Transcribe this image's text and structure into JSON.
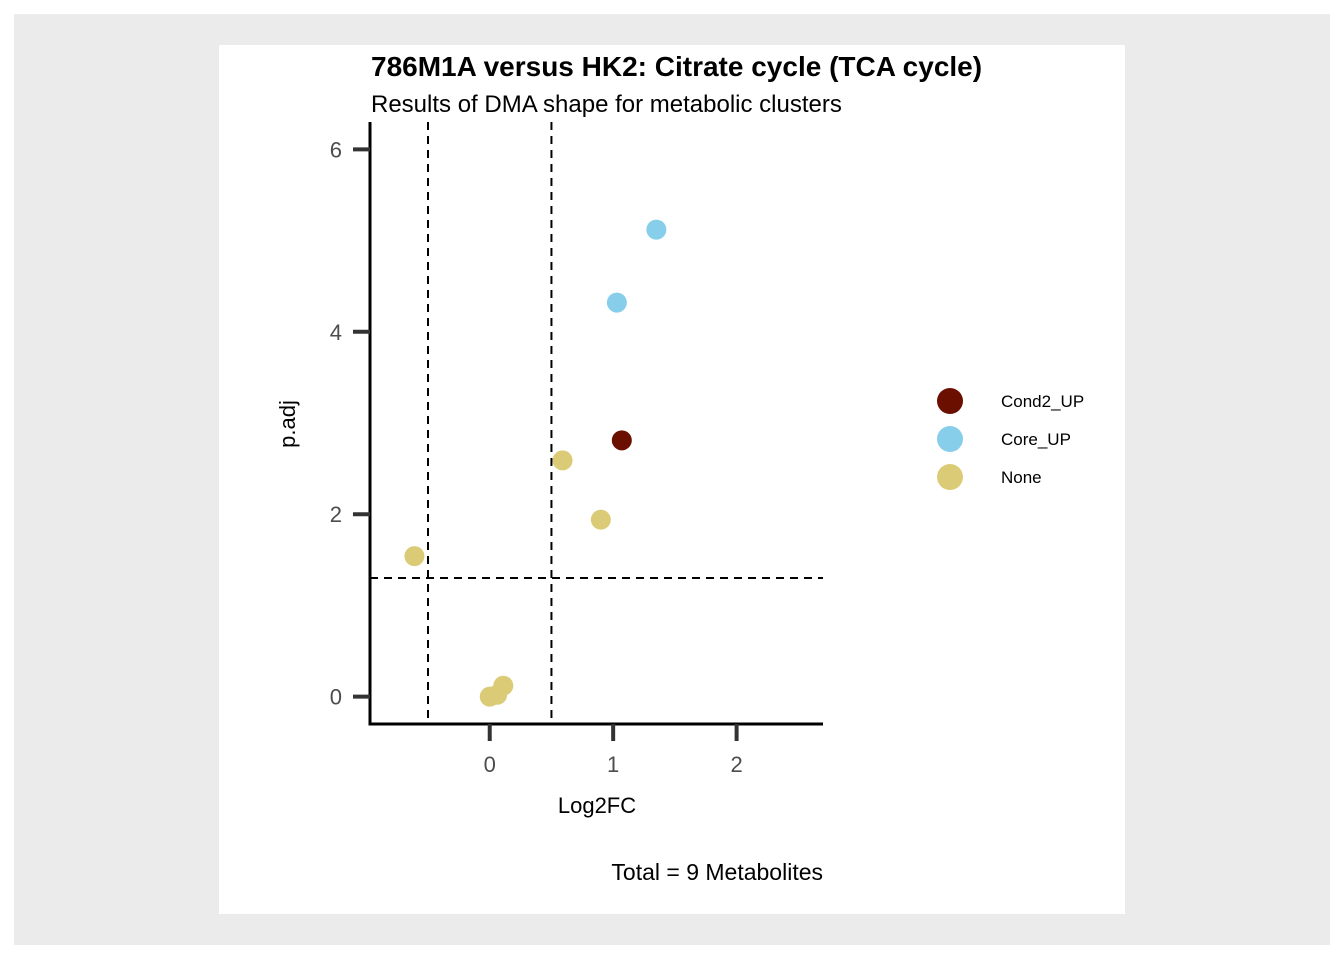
{
  "chart_data": {
    "type": "scatter",
    "title": "786M1A versus HK2: Citrate cycle (TCA cycle)",
    "subtitle": "Results of DMA shape for metabolic clusters",
    "xlabel": "Log2FC",
    "ylabel": "p.adj",
    "caption": "Total = 9 Metabolites",
    "xlim": [
      -0.97,
      2.7
    ],
    "ylim": [
      -0.3,
      6.3
    ],
    "xticks": [
      0,
      1,
      2
    ],
    "yticks": [
      0,
      2,
      4,
      6
    ],
    "xtick_labels": [
      "0",
      "1",
      "2"
    ],
    "ytick_labels": [
      "0",
      "2",
      "4",
      "6"
    ],
    "vlines": [
      -0.5,
      0.5
    ],
    "hlines": [
      1.3
    ],
    "legend_position": "right",
    "grid": false,
    "series": [
      {
        "name": "Cond2_UP",
        "color": "#6b0f00",
        "points": [
          {
            "x": 1.07,
            "y": 2.81
          }
        ]
      },
      {
        "name": "Core_UP",
        "color": "#87ceeb",
        "points": [
          {
            "x": 1.35,
            "y": 5.12
          },
          {
            "x": 1.03,
            "y": 4.32
          }
        ]
      },
      {
        "name": "None",
        "color": "#dccb76",
        "points": [
          {
            "x": 0.59,
            "y": 2.59
          },
          {
            "x": 0.9,
            "y": 1.94
          },
          {
            "x": -0.61,
            "y": 1.54
          },
          {
            "x": 0.11,
            "y": 0.12
          },
          {
            "x": 0.06,
            "y": 0.02
          },
          {
            "x": 0.0,
            "y": 0.0
          }
        ]
      }
    ]
  }
}
